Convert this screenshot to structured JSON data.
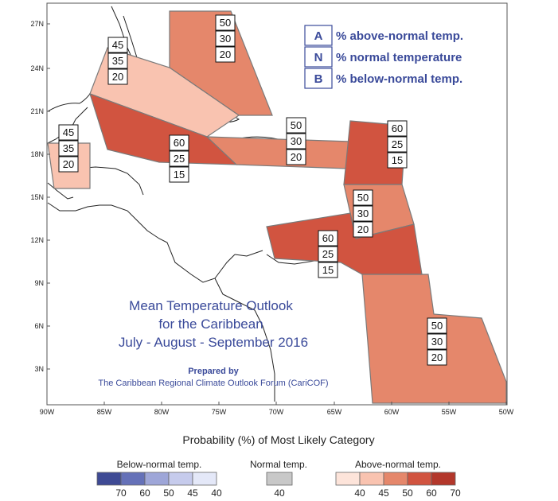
{
  "map": {
    "title_lines": [
      "Mean Temperature Outlook",
      "for the Caribbean",
      "July - August - September 2016"
    ],
    "credit_lines": [
      "Prepared by",
      "The Caribbean Regional Climate Outlook Forum (CariCOF)"
    ],
    "legend_key": [
      {
        "code": "A",
        "text": "% above-normal temp."
      },
      {
        "code": "N",
        "text": "% normal temperature"
      },
      {
        "code": "B",
        "text": "% below-normal temp."
      }
    ],
    "lat_ticks": [
      "27N",
      "24N",
      "21N",
      "18N",
      "15N",
      "12N",
      "9N",
      "6N",
      "3N"
    ],
    "lon_ticks": [
      "90W",
      "85W",
      "80W",
      "75W",
      "70W",
      "65W",
      "60W",
      "55W",
      "50W"
    ],
    "regions": [
      {
        "id": "bahamas-north",
        "probs": [
          "50",
          "30",
          "20"
        ],
        "color": "#e5876b"
      },
      {
        "id": "bahamas-cuba-south",
        "probs": [
          "45",
          "35",
          "20"
        ],
        "color": "#f9c3b0"
      },
      {
        "id": "belize",
        "probs": [
          "45",
          "35",
          "20"
        ],
        "color": "#f9c3b0"
      },
      {
        "id": "cayman-jamaica",
        "probs": [
          "60",
          "25",
          "15"
        ],
        "color": "#d15440"
      },
      {
        "id": "greater-antilles-east",
        "probs": [
          "50",
          "30",
          "20"
        ],
        "color": "#e5876b"
      },
      {
        "id": "leeward-islands",
        "probs": [
          "60",
          "25",
          "15"
        ],
        "color": "#d15440"
      },
      {
        "id": "windward-islands",
        "probs": [
          "50",
          "30",
          "20"
        ],
        "color": "#e5876b"
      },
      {
        "id": "southern-caribbean",
        "probs": [
          "60",
          "25",
          "15"
        ],
        "color": "#d15440"
      },
      {
        "id": "guianas",
        "probs": [
          "50",
          "30",
          "20"
        ],
        "color": "#e5876b"
      }
    ]
  },
  "legend": {
    "heading": "Probability (%) of Most Likely Category",
    "below": {
      "title": "Below-normal temp.",
      "labels": [
        "70",
        "60",
        "50",
        "45",
        "40"
      ],
      "colors": [
        "#3e4a94",
        "#6571b8",
        "#9ea6d8",
        "#c6cbec",
        "#e4e8f8"
      ]
    },
    "normal": {
      "title": "Normal temp.",
      "labels": [
        "40"
      ],
      "colors": [
        "#c8c8c8"
      ]
    },
    "above": {
      "title": "Above-normal temp.",
      "labels": [
        "40",
        "45",
        "50",
        "60",
        "70"
      ],
      "colors": [
        "#fde4da",
        "#f9c3b0",
        "#e5876b",
        "#d15440",
        "#b3372b"
      ]
    }
  }
}
